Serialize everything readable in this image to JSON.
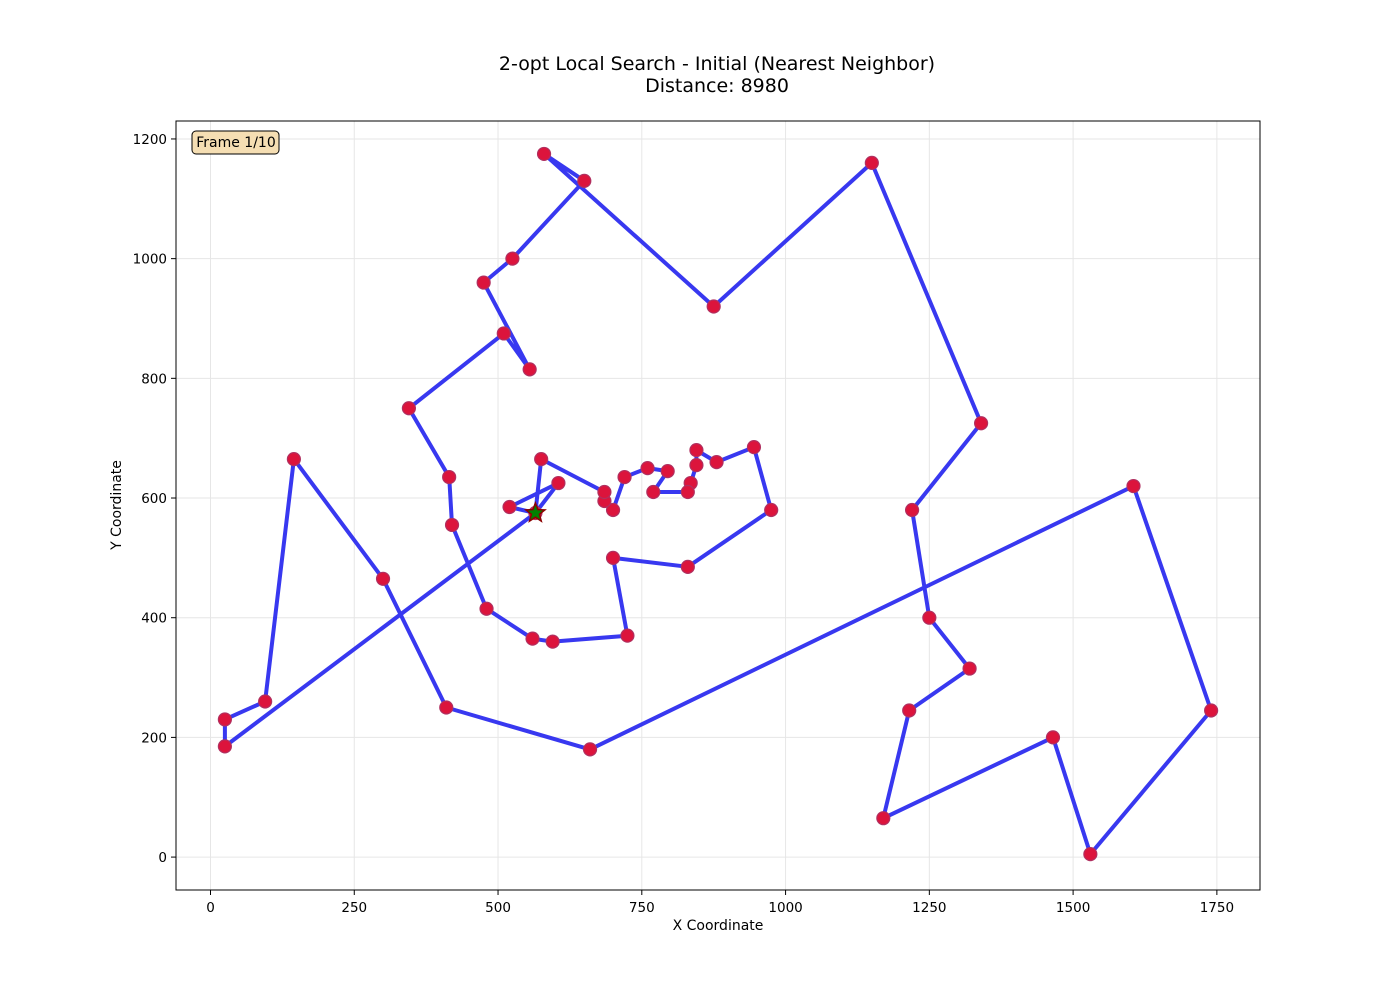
{
  "chart_data": {
    "type": "line",
    "title": "2-opt Local Search - Initial (Nearest Neighbor)",
    "subtitle": "Distance: 8980",
    "xlabel": "X Coordinate",
    "ylabel": "Y Coordinate",
    "xlim": [
      -60,
      1825
    ],
    "ylim": [
      -55,
      1230
    ],
    "xticks": [
      0,
      250,
      500,
      750,
      1000,
      1250,
      1500,
      1750
    ],
    "yticks": [
      0,
      200,
      400,
      600,
      800,
      1000,
      1200
    ],
    "grid": true,
    "frame_label": "Frame 1/10",
    "frame_label_position": "top-left",
    "colors": {
      "route": "#2222ee",
      "city": "#dc143c",
      "city_edge": "#b03060",
      "start": "#008000",
      "start_edge": "#8b0000",
      "badge_fill": "#f5deb3",
      "grid": "#e6e6e6"
    },
    "start_city": [
      565,
      575
    ],
    "route": [
      [
        565,
        575
      ],
      [
        605,
        625
      ],
      [
        520,
        585
      ],
      [
        565,
        575
      ],
      [
        25,
        185
      ],
      [
        25,
        230
      ],
      [
        95,
        260
      ],
      [
        145,
        665
      ],
      [
        300,
        465
      ],
      [
        410,
        250
      ],
      [
        660,
        180
      ],
      [
        1605,
        620
      ],
      [
        1740,
        245
      ],
      [
        1530,
        5
      ],
      [
        1465,
        200
      ],
      [
        1170,
        65
      ],
      [
        1215,
        245
      ],
      [
        1320,
        315
      ],
      [
        1250,
        400
      ],
      [
        1220,
        580
      ],
      [
        1340,
        725
      ],
      [
        1150,
        1160
      ],
      [
        875,
        920
      ],
      [
        580,
        1175
      ],
      [
        650,
        1130
      ],
      [
        525,
        1000
      ],
      [
        475,
        960
      ],
      [
        555,
        815
      ],
      [
        510,
        875
      ],
      [
        345,
        750
      ],
      [
        415,
        635
      ],
      [
        420,
        555
      ],
      [
        480,
        415
      ],
      [
        560,
        365
      ],
      [
        595,
        360
      ],
      [
        725,
        370
      ],
      [
        700,
        500
      ],
      [
        830,
        485
      ],
      [
        975,
        580
      ],
      [
        945,
        685
      ],
      [
        880,
        660
      ],
      [
        845,
        680
      ],
      [
        845,
        655
      ],
      [
        835,
        625
      ],
      [
        830,
        610
      ],
      [
        770,
        610
      ],
      [
        795,
        645
      ],
      [
        760,
        650
      ],
      [
        720,
        635
      ],
      [
        700,
        580
      ],
      [
        685,
        595
      ],
      [
        685,
        610
      ],
      [
        575,
        665
      ],
      [
        565,
        575
      ]
    ]
  }
}
